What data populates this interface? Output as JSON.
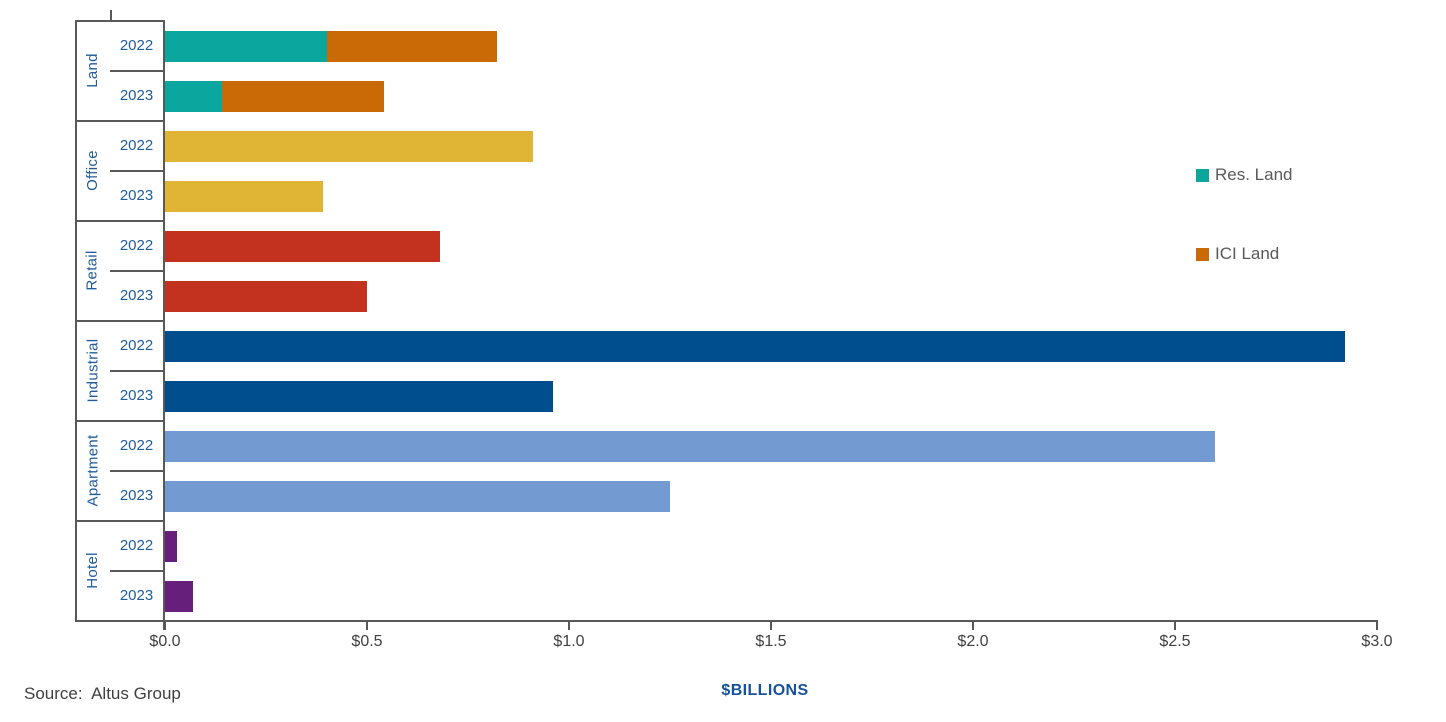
{
  "colors": {
    "res_land": "#0BA79E",
    "ici_land": "#C96A06",
    "office": "#E0B434",
    "retail": "#C2321F",
    "industrial": "#004E8E",
    "apartment": "#739BD2",
    "hotel": "#661F7A",
    "label_blue": "#1F5C9E",
    "axis_text": "#404040",
    "line_gray": "#595959",
    "legend_text": "#595959",
    "billions_blue": "#17519B"
  },
  "chart_data": {
    "type": "bar",
    "orientation": "horizontal",
    "stacked": true,
    "xlabel": "$BILLIONS",
    "xlim": [
      0,
      3.0
    ],
    "grid": false,
    "x_ticks": [
      {
        "label": "$0.0",
        "value": 0.0
      },
      {
        "label": "$0.5",
        "value": 0.5
      },
      {
        "label": "$1.0",
        "value": 1.0
      },
      {
        "label": "$1.5",
        "value": 1.5
      },
      {
        "label": "$2.0",
        "value": 2.0
      },
      {
        "label": "$2.5",
        "value": 2.5
      },
      {
        "label": "$3.0",
        "value": 3.0
      }
    ],
    "legend": {
      "position": "right",
      "items": [
        {
          "label": "Res. Land",
          "color_key": "res_land"
        },
        {
          "label": "ICI Land",
          "color_key": "ici_land"
        }
      ]
    },
    "groups": [
      {
        "category": "Land",
        "rows": [
          {
            "year": "2022",
            "segments": [
              {
                "series": "Res. Land",
                "value": 0.4,
                "color_key": "res_land"
              },
              {
                "series": "ICI Land",
                "value": 0.42,
                "color_key": "ici_land"
              }
            ]
          },
          {
            "year": "2023",
            "segments": [
              {
                "series": "Res. Land",
                "value": 0.14,
                "color_key": "res_land"
              },
              {
                "series": "ICI Land",
                "value": 0.4,
                "color_key": "ici_land"
              }
            ]
          }
        ]
      },
      {
        "category": "Office",
        "rows": [
          {
            "year": "2022",
            "segments": [
              {
                "series": "Office",
                "value": 0.91,
                "color_key": "office"
              }
            ]
          },
          {
            "year": "2023",
            "segments": [
              {
                "series": "Office",
                "value": 0.39,
                "color_key": "office"
              }
            ]
          }
        ]
      },
      {
        "category": "Retail",
        "rows": [
          {
            "year": "2022",
            "segments": [
              {
                "series": "Retail",
                "value": 0.68,
                "color_key": "retail"
              }
            ]
          },
          {
            "year": "2023",
            "segments": [
              {
                "series": "Retail",
                "value": 0.5,
                "color_key": "retail"
              }
            ]
          }
        ]
      },
      {
        "category": "Industrial",
        "rows": [
          {
            "year": "2022",
            "segments": [
              {
                "series": "Industrial",
                "value": 2.92,
                "color_key": "industrial"
              }
            ]
          },
          {
            "year": "2023",
            "segments": [
              {
                "series": "Industrial",
                "value": 0.96,
                "color_key": "industrial"
              }
            ]
          }
        ]
      },
      {
        "category": "Apartment",
        "rows": [
          {
            "year": "2022",
            "segments": [
              {
                "series": "Apartment",
                "value": 2.6,
                "color_key": "apartment"
              }
            ]
          },
          {
            "year": "2023",
            "segments": [
              {
                "series": "Apartment",
                "value": 1.25,
                "color_key": "apartment"
              }
            ]
          }
        ]
      },
      {
        "category": "Hotel",
        "rows": [
          {
            "year": "2022",
            "segments": [
              {
                "series": "Hotel",
                "value": 0.03,
                "color_key": "hotel"
              }
            ]
          },
          {
            "year": "2023",
            "segments": [
              {
                "series": "Hotel",
                "value": 0.07,
                "color_key": "hotel"
              }
            ]
          }
        ]
      }
    ],
    "source_label": "Source:  Altus Group"
  }
}
